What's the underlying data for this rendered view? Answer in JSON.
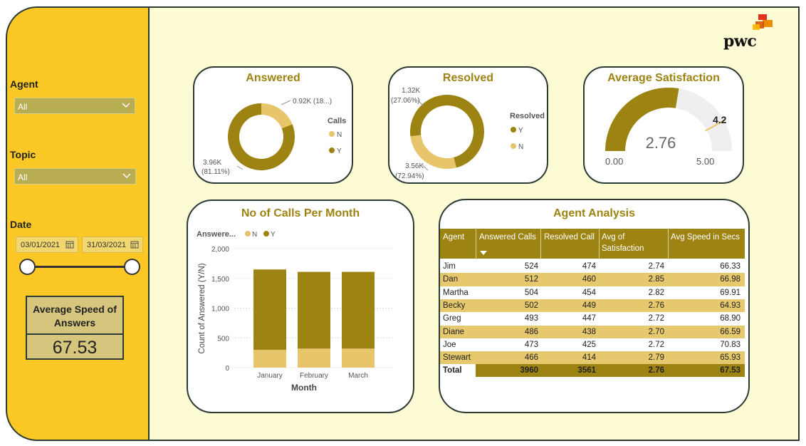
{
  "sidebar": {
    "agent_label": "Agent",
    "agent_value": "All",
    "topic_label": "Topic",
    "topic_value": "All",
    "date_label": "Date",
    "date_start": "03/01/2021",
    "date_end": "31/03/2021",
    "kpi_title": "Average Speed of Answers",
    "kpi_value": "67.53"
  },
  "logo": {
    "text": "pwc"
  },
  "answered": {
    "title": "Answered",
    "legend_title": "Calls",
    "legend": [
      "N",
      "Y"
    ],
    "label_n": "0.92K (18...)",
    "label_y_line1": "3.96K",
    "label_y_line2": "(81.11%)",
    "n_fraction": 0.1889,
    "y_fraction": 0.8111
  },
  "resolved": {
    "title": "Resolved",
    "legend_title": "Resolved",
    "legend": [
      "Y",
      "N"
    ],
    "label_n_line1": "1.32K",
    "label_n_line2": "(27.06%)",
    "label_y_line1": "3.56K",
    "label_y_line2": "(72.94%)",
    "n_fraction": 0.2706,
    "y_fraction": 0.7294
  },
  "satisfaction": {
    "title": "Average Satisfaction",
    "value": "2.76",
    "min": "0.00",
    "max": "5.00",
    "target": "4.2",
    "value_num": 2.76,
    "target_num": 4.2,
    "max_num": 5
  },
  "calls_chart": {
    "title": "No of Calls Per Month",
    "legend_title": "Answere...",
    "legend": [
      "N",
      "Y"
    ]
  },
  "chart_data": {
    "type": "bar",
    "stacked": true,
    "title": "No of Calls Per Month",
    "xlabel": "Month",
    "ylabel": "Count of Answered (Y/N)",
    "categories": [
      "January",
      "February",
      "March"
    ],
    "series": [
      {
        "name": "N",
        "values": [
          300,
          320,
          320
        ],
        "color": "#e8c56a"
      },
      {
        "name": "Y",
        "values": [
          1350,
          1290,
          1290
        ],
        "color": "#9d8312"
      }
    ],
    "ylim": [
      0,
      2000
    ],
    "yticks": [
      "0",
      "500",
      "1,000",
      "1,500",
      "2,000"
    ],
    "ytick_values": [
      0,
      500,
      1000,
      1500,
      2000
    ],
    "grid": true,
    "legend_position": "top-left"
  },
  "agent_table": {
    "title": "Agent Analysis",
    "columns": [
      "Agent",
      "Answered Calls",
      "Resolved Call",
      "Avg of Satisfaction",
      "Avg Speed in Secs"
    ],
    "rows": [
      [
        "Jim",
        "524",
        "474",
        "2.74",
        "66.33"
      ],
      [
        "Dan",
        "512",
        "460",
        "2.85",
        "66.98"
      ],
      [
        "Martha",
        "504",
        "454",
        "2.82",
        "69.91"
      ],
      [
        "Becky",
        "502",
        "449",
        "2.76",
        "64.93"
      ],
      [
        "Greg",
        "493",
        "447",
        "2.72",
        "68.90"
      ],
      [
        "Diane",
        "486",
        "438",
        "2.70",
        "66.59"
      ],
      [
        "Joe",
        "473",
        "425",
        "2.72",
        "70.83"
      ],
      [
        "Stewart",
        "466",
        "414",
        "2.79",
        "65.93"
      ]
    ],
    "total": [
      "Total",
      "3960",
      "3561",
      "2.76",
      "67.53"
    ]
  },
  "colors": {
    "sidebar": "#fcc825",
    "panel": "#fcfbd4",
    "dark_gold": "#9d8312",
    "light_gold": "#e8c56a",
    "title_gold": "#9d8312"
  }
}
